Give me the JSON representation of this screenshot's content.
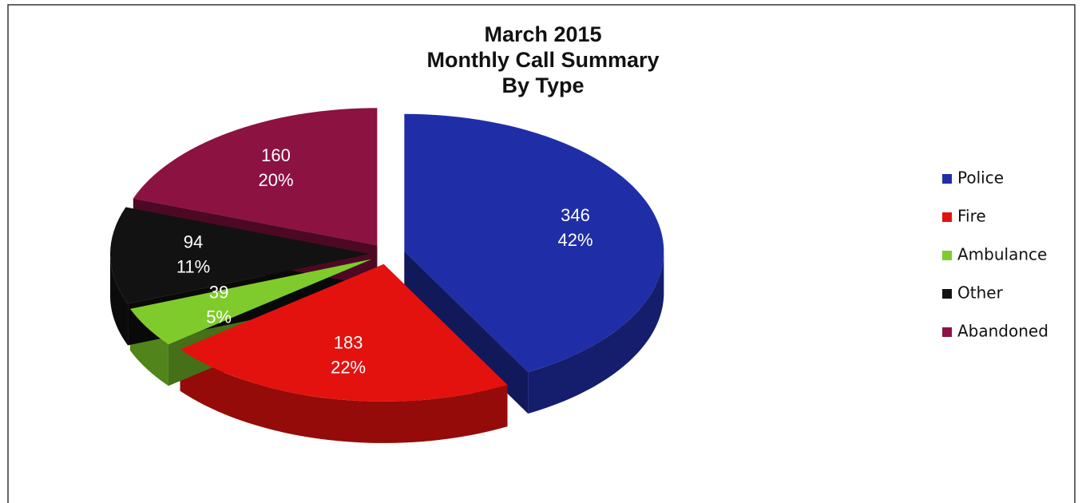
{
  "chart_data": {
    "type": "pie",
    "title_lines": [
      "March 2015",
      "Monthly Call Summary",
      "By Type"
    ],
    "categories": [
      "Police",
      "Fire",
      "Ambulance",
      "Other",
      "Abandoned"
    ],
    "values": [
      346,
      183,
      39,
      94,
      160
    ],
    "percent_labels": [
      "42%",
      "22%",
      "5%",
      "11%",
      "20%"
    ],
    "colors": [
      "#1f2ea6",
      "#e3120f",
      "#7fcb2c",
      "#121212",
      "#8c1242"
    ],
    "legend": "right"
  }
}
